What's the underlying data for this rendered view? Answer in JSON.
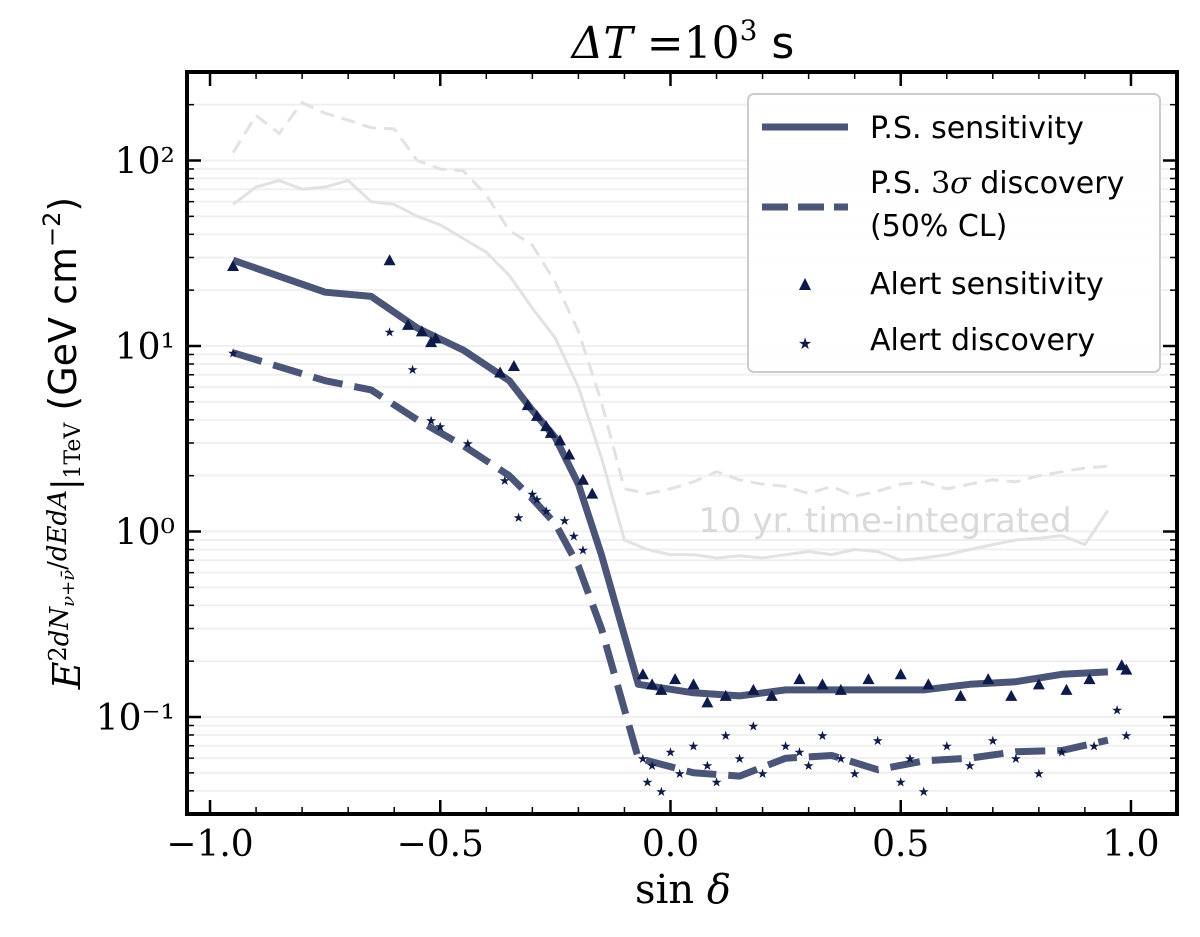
{
  "chart_data": {
    "type": "line",
    "title": "ΔT =10³ s",
    "xlabel": "sin δ",
    "ylabel": "E² dN/dEdA|1TeV (GeV cm⁻²)",
    "ylabel_unit": "(GeV cm⁻²)",
    "xlim": [
      -1.05,
      1.1
    ],
    "ylim": [
      0.03,
      300
    ],
    "yscale": "log",
    "x_ticks": [
      -1.0,
      -0.5,
      0.0,
      0.5,
      1.0
    ],
    "x_tick_labels": [
      "−1.0",
      "−0.5",
      "0.0",
      "0.5",
      "1.0"
    ],
    "y_ticks": [
      0.1,
      1,
      10,
      100
    ],
    "y_tick_labels": [
      "10⁻¹",
      "10⁰",
      "10¹",
      "10²"
    ],
    "grid": "horizontal minor, light",
    "legend_position": "top-right",
    "annotation": "10 yr. time-integrated",
    "colors": {
      "series_main": "#4a5577",
      "markers": "#0d1a4a",
      "background_curves": "#e2e2e2",
      "annotation": "#d9d9d9"
    },
    "series": [
      {
        "name": "P.S. sensitivity",
        "style": "solid",
        "x": [
          -0.95,
          -0.75,
          -0.65,
          -0.55,
          -0.45,
          -0.35,
          -0.3,
          -0.25,
          -0.2,
          -0.15,
          -0.07,
          0.05,
          0.15,
          0.25,
          0.35,
          0.45,
          0.55,
          0.65,
          0.75,
          0.85,
          0.95
        ],
        "y": [
          29,
          19.5,
          18.5,
          12.5,
          9.5,
          6.5,
          4.5,
          3.2,
          1.8,
          0.75,
          0.15,
          0.135,
          0.13,
          0.14,
          0.14,
          0.14,
          0.14,
          0.15,
          0.155,
          0.17,
          0.175
        ]
      },
      {
        "name": "P.S. 3σ discovery (50% CL)",
        "style": "dashed",
        "x": [
          -0.95,
          -0.75,
          -0.65,
          -0.55,
          -0.45,
          -0.35,
          -0.3,
          -0.25,
          -0.2,
          -0.15,
          -0.07,
          0.05,
          0.15,
          0.25,
          0.35,
          0.45,
          0.55,
          0.65,
          0.75,
          0.85,
          0.95
        ],
        "y": [
          9.2,
          6.5,
          5.8,
          4.0,
          2.9,
          2.0,
          1.5,
          1.1,
          0.65,
          0.3,
          0.06,
          0.05,
          0.048,
          0.06,
          0.062,
          0.052,
          0.058,
          0.06,
          0.065,
          0.066,
          0.075
        ]
      },
      {
        "name": "Alert sensitivity",
        "style": "triangle-markers",
        "x": [
          -0.95,
          -0.61,
          -0.57,
          -0.54,
          -0.52,
          -0.51,
          -0.37,
          -0.34,
          -0.31,
          -0.29,
          -0.27,
          -0.26,
          -0.24,
          -0.22,
          -0.19,
          -0.17,
          -0.06,
          -0.04,
          -0.02,
          0.01,
          0.05,
          0.08,
          0.12,
          0.18,
          0.22,
          0.28,
          0.33,
          0.37,
          0.43,
          0.5,
          0.56,
          0.63,
          0.69,
          0.74,
          0.8,
          0.86,
          0.91,
          0.98,
          0.99
        ],
        "y": [
          27,
          29,
          13,
          12,
          10.5,
          11,
          7.2,
          7.8,
          4.8,
          4.2,
          3.7,
          3.4,
          3.1,
          2.6,
          1.9,
          1.6,
          0.17,
          0.15,
          0.14,
          0.16,
          0.15,
          0.12,
          0.13,
          0.14,
          0.13,
          0.16,
          0.15,
          0.14,
          0.16,
          0.17,
          0.15,
          0.13,
          0.16,
          0.13,
          0.15,
          0.14,
          0.16,
          0.19,
          0.18
        ]
      },
      {
        "name": "Alert discovery",
        "style": "star-markers",
        "x": [
          -0.95,
          -0.61,
          -0.56,
          -0.52,
          -0.5,
          -0.44,
          -0.36,
          -0.33,
          -0.3,
          -0.29,
          -0.27,
          -0.23,
          -0.21,
          -0.19,
          -0.06,
          -0.05,
          -0.04,
          -0.02,
          0.0,
          0.02,
          0.05,
          0.08,
          0.1,
          0.12,
          0.15,
          0.18,
          0.2,
          0.25,
          0.28,
          0.3,
          0.33,
          0.37,
          0.4,
          0.45,
          0.5,
          0.52,
          0.55,
          0.6,
          0.65,
          0.7,
          0.75,
          0.8,
          0.85,
          0.92,
          0.97,
          0.99
        ],
        "y": [
          9.2,
          12,
          7.5,
          4.0,
          3.7,
          3.0,
          1.9,
          1.2,
          1.6,
          1.5,
          1.3,
          1.15,
          0.95,
          0.8,
          0.06,
          0.045,
          0.055,
          0.04,
          0.065,
          0.05,
          0.07,
          0.055,
          0.045,
          0.08,
          0.06,
          0.09,
          0.05,
          0.07,
          0.065,
          0.055,
          0.08,
          0.06,
          0.05,
          0.075,
          0.045,
          0.06,
          0.04,
          0.07,
          0.055,
          0.075,
          0.06,
          0.05,
          0.065,
          0.07,
          0.11,
          0.08
        ]
      },
      {
        "name": "",
        "style": "background-solid",
        "x": [
          -0.95,
          -0.9,
          -0.85,
          -0.8,
          -0.75,
          -0.7,
          -0.65,
          -0.6,
          -0.55,
          -0.5,
          -0.45,
          -0.4,
          -0.35,
          -0.3,
          -0.25,
          -0.2,
          -0.15,
          -0.1,
          -0.05,
          0.0,
          0.05,
          0.1,
          0.15,
          0.2,
          0.25,
          0.3,
          0.35,
          0.4,
          0.45,
          0.5,
          0.55,
          0.6,
          0.65,
          0.7,
          0.75,
          0.8,
          0.85,
          0.9,
          0.95
        ],
        "y": [
          58,
          72,
          78,
          70,
          72,
          78,
          60,
          58,
          50,
          45,
          38,
          32,
          24,
          16,
          11,
          6,
          2.5,
          0.9,
          0.8,
          0.75,
          0.75,
          0.72,
          0.74,
          0.72,
          0.75,
          0.78,
          0.75,
          0.8,
          0.78,
          0.7,
          0.72,
          0.75,
          0.8,
          0.85,
          0.9,
          0.92,
          0.95,
          0.85,
          1.3
        ]
      },
      {
        "name": "",
        "style": "background-dashed",
        "x": [
          -0.95,
          -0.9,
          -0.85,
          -0.8,
          -0.75,
          -0.7,
          -0.65,
          -0.6,
          -0.55,
          -0.5,
          -0.45,
          -0.4,
          -0.35,
          -0.3,
          -0.25,
          -0.2,
          -0.15,
          -0.1,
          -0.05,
          0.0,
          0.05,
          0.1,
          0.15,
          0.2,
          0.25,
          0.3,
          0.35,
          0.4,
          0.45,
          0.5,
          0.55,
          0.6,
          0.65,
          0.7,
          0.75,
          0.8,
          0.85,
          0.9,
          0.95
        ],
        "y": [
          110,
          175,
          140,
          205,
          180,
          165,
          150,
          148,
          100,
          90,
          88,
          65,
          42,
          35,
          22,
          12,
          5,
          1.7,
          1.6,
          1.7,
          1.85,
          2.1,
          1.9,
          1.8,
          1.75,
          1.6,
          1.75,
          1.55,
          1.65,
          1.8,
          1.85,
          1.7,
          1.8,
          1.9,
          1.85,
          2.0,
          2.1,
          2.2,
          2.25
        ]
      }
    ]
  }
}
